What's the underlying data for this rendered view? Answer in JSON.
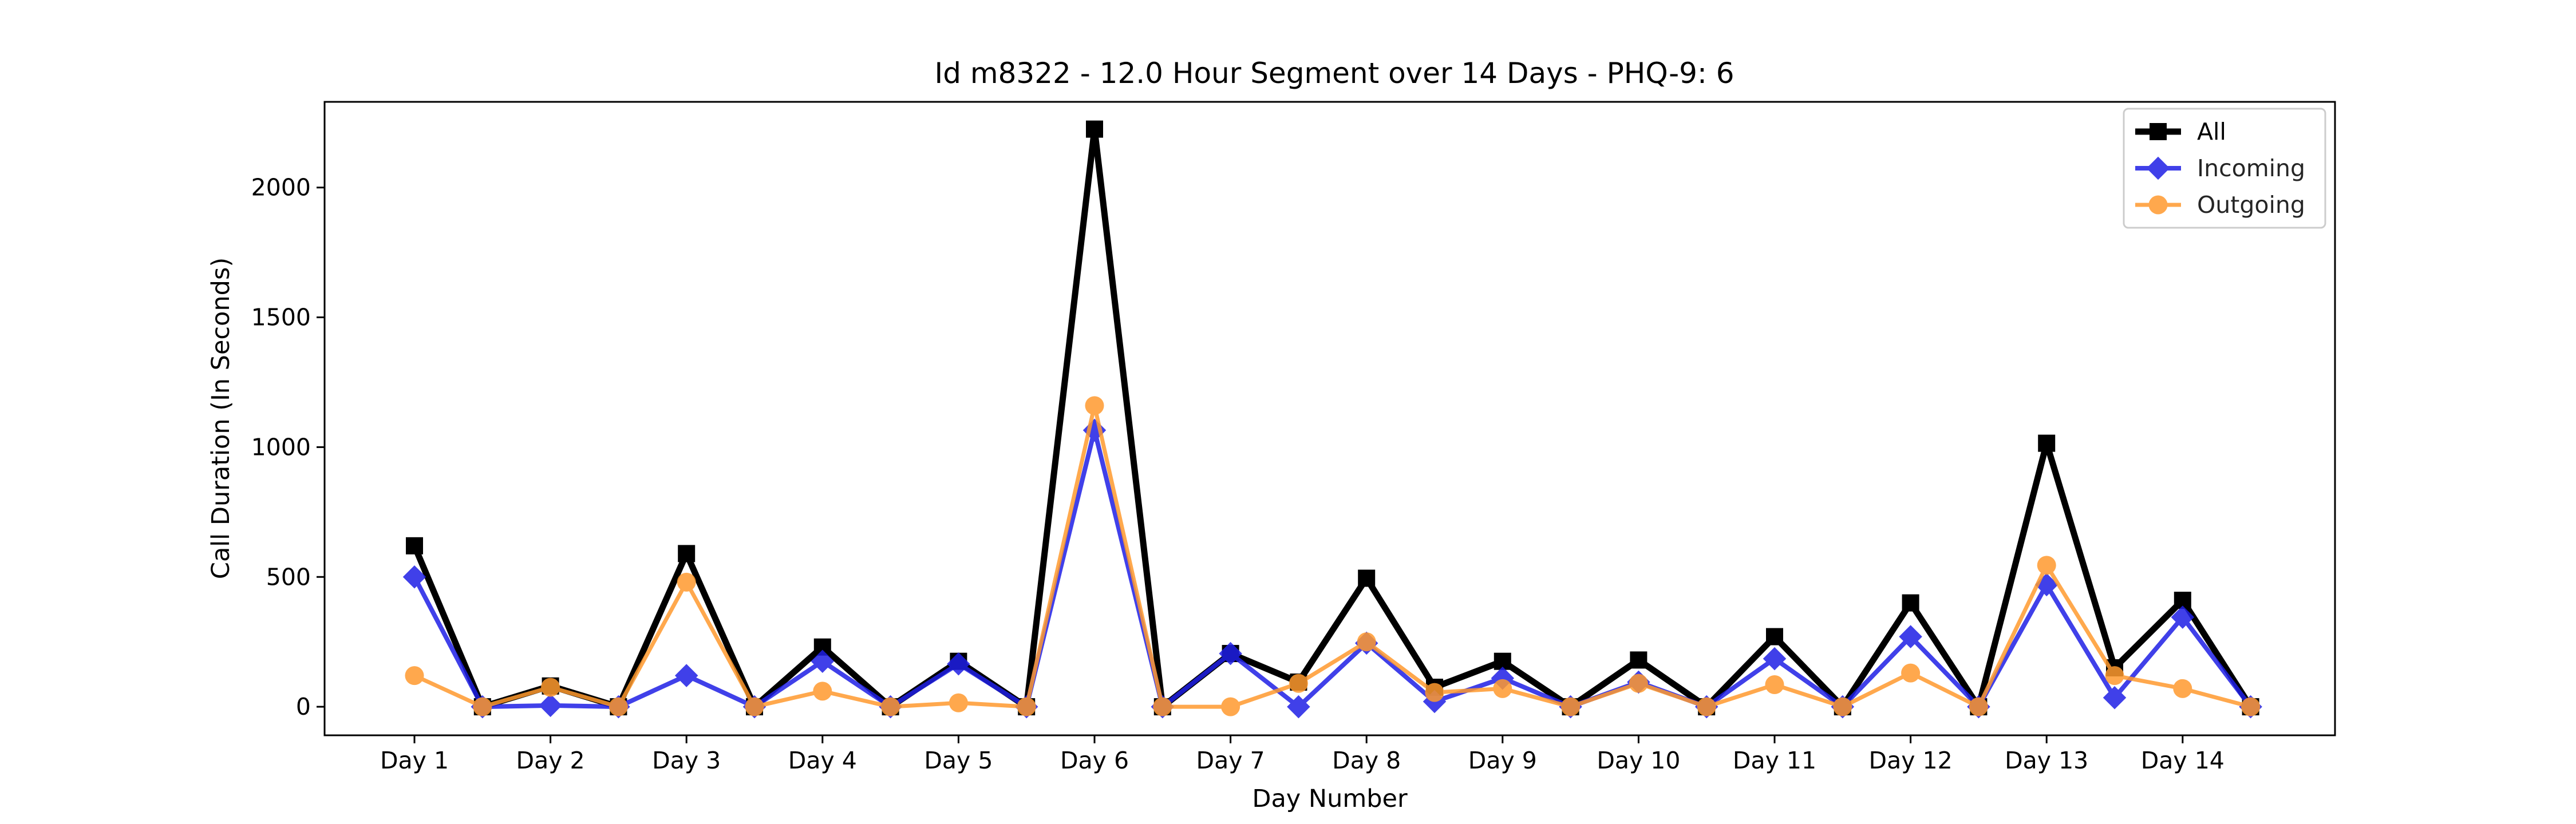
{
  "chart_data": {
    "type": "line",
    "title": "Id m8322 - 12.0 Hour Segment over 14 Days - PHQ-9: 6",
    "xlabel": "Day Number",
    "ylabel": "Call Duration (In Seconds)",
    "x_tick_labels": [
      "Day 1",
      "Day 2",
      "Day 3",
      "Day 4",
      "Day 5",
      "Day 6",
      "Day 7",
      "Day 8",
      "Day 9",
      "Day 10",
      "Day 11",
      "Day 12",
      "Day 13",
      "Day 14"
    ],
    "y_ticks": [
      0,
      500,
      1000,
      1500,
      2000
    ],
    "ylim": [
      -110,
      2330
    ],
    "grid": false,
    "legend_position": "top-right",
    "series": [
      {
        "name": "All",
        "color": "#000000",
        "marker": "square",
        "values": [
          620,
          0,
          80,
          0,
          590,
          0,
          230,
          0,
          175,
          0,
          2225,
          0,
          205,
          95,
          495,
          75,
          175,
          0,
          180,
          0,
          270,
          0,
          400,
          0,
          1015,
          150,
          410,
          0
        ]
      },
      {
        "name": "Incoming",
        "color": "#1f1fe6",
        "marker": "diamond",
        "values": [
          500,
          0,
          5,
          0,
          120,
          0,
          175,
          0,
          165,
          0,
          1065,
          0,
          205,
          0,
          245,
          20,
          110,
          0,
          95,
          0,
          185,
          0,
          270,
          0,
          470,
          35,
          345,
          0
        ]
      },
      {
        "name": "Outgoing",
        "color": "#ff9a2e",
        "marker": "circle",
        "values": [
          120,
          0,
          75,
          0,
          480,
          0,
          60,
          0,
          15,
          0,
          1160,
          0,
          0,
          90,
          250,
          55,
          70,
          0,
          90,
          0,
          85,
          0,
          130,
          0,
          545,
          120,
          70,
          0
        ]
      }
    ]
  }
}
